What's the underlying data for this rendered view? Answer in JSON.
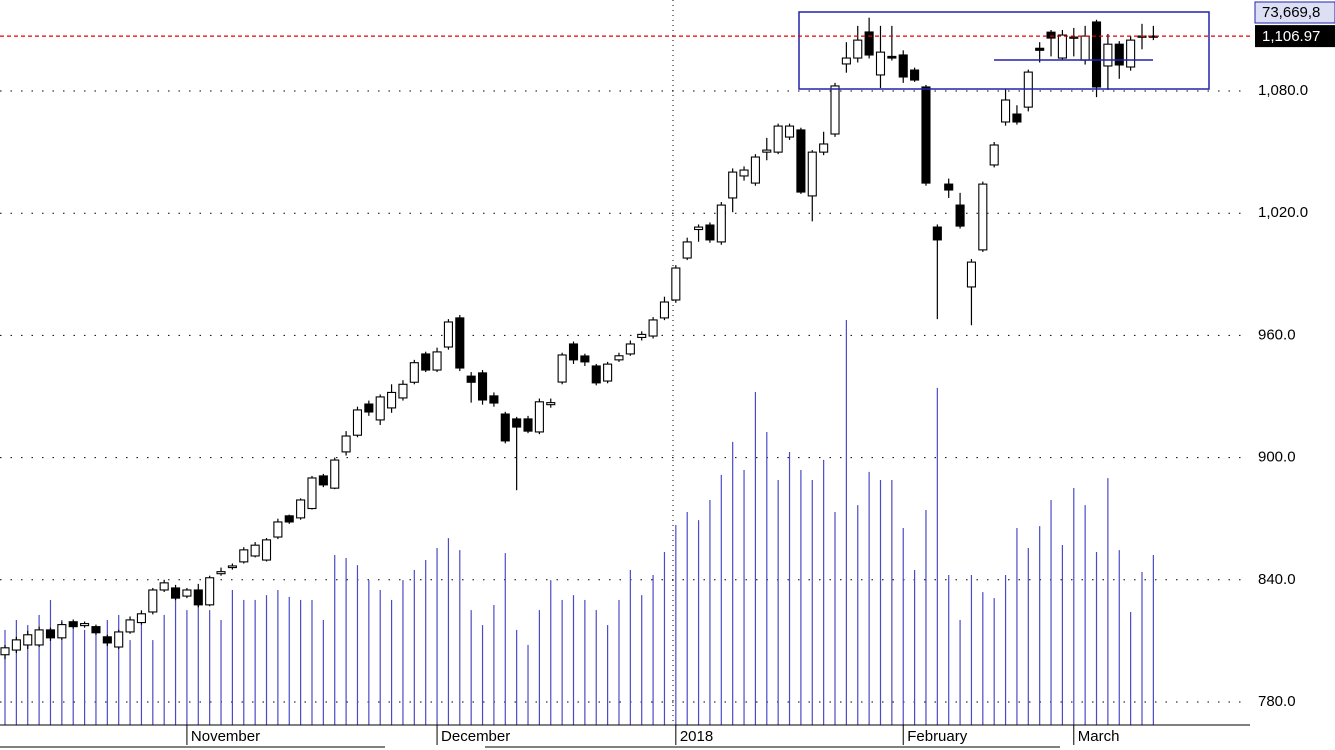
{
  "chart_data": {
    "type": "candlestick",
    "categories": [
      null,
      null,
      null,
      null,
      null,
      null,
      null,
      null,
      null,
      null,
      null,
      null,
      null,
      null,
      null,
      null,
      "November",
      null,
      null,
      null,
      null,
      null,
      null,
      null,
      null,
      null,
      null,
      null,
      null,
      null,
      null,
      null,
      null,
      null,
      null,
      null,
      null,
      null,
      "December",
      null,
      null,
      null,
      null,
      null,
      null,
      null,
      null,
      null,
      null,
      null,
      null,
      null,
      null,
      null,
      null,
      null,
      null,
      null,
      null,
      "2018",
      null,
      null,
      null,
      null,
      null,
      null,
      null,
      null,
      null,
      null,
      null,
      null,
      null,
      null,
      null,
      null,
      null,
      null,
      null,
      "February",
      null,
      null,
      null,
      null,
      null,
      null,
      null,
      null,
      null,
      null,
      null,
      null,
      null,
      null,
      "March",
      null,
      null,
      null,
      null,
      null,
      null,
      null
    ],
    "open": [
      803.2,
      805.5,
      808,
      808,
      815.4,
      811.5,
      819.4,
      817.5,
      817,
      812,
      807,
      814.4,
      819,
      824.2,
      835,
      836,
      832,
      835,
      827.7,
      843,
      846,
      848.8,
      851.7,
      849.7,
      861,
      871.4,
      870.4,
      875,
      891,
      885,
      902.8,
      911,
      926.3,
      918.5,
      924.4,
      929.3,
      937,
      950.9,
      943,
      954.3,
      968.6,
      940,
      941.6,
      930.3,
      921.4,
      919,
      919,
      912.6,
      926,
      937.1,
      955.8,
      949.9,
      945,
      937.6,
      948,
      950.9,
      959,
      959.7,
      968.6,
      977.4,
      998,
      1012,
      1014.2,
      1005.9,
      1027.5,
      1038.3,
      1034.8,
      1050,
      1050,
      1057.4,
      1060.9,
      1028.5,
      1050,
      1058.9,
      1093.3,
      1096.2,
      1109,
      1087.9,
      1097,
      1097.7,
      1090.3,
      1082,
      1013.2,
      1034.3,
      1024,
      983.8,
      1002,
      1043.7,
      1064.8,
      1068.7,
      1072.1,
      1101,
      1108.9,
      1096.2,
      1106,
      1095.2,
      1113.9,
      1092.3,
      1103,
      1091.8,
      1106.5,
      1107
    ],
    "high": [
      808,
      812,
      815,
      817,
      816.5,
      819.5,
      820.5,
      819.5,
      818,
      813,
      815.5,
      822,
      825,
      836,
      840,
      837.5,
      836,
      838,
      842,
      846,
      848,
      856,
      858.5,
      860.5,
      870,
      872,
      880,
      891,
      892,
      900,
      913,
      925,
      928,
      931,
      936,
      938,
      948,
      952,
      954,
      968,
      970,
      942,
      943,
      932,
      922.5,
      920,
      920.5,
      929,
      929,
      951.5,
      957,
      951,
      946,
      947,
      951.5,
      957.5,
      962,
      969,
      979,
      994.5,
      1008,
      1014.5,
      1015.5,
      1025.5,
      1042,
      1043,
      1049,
      1057,
      1064,
      1064,
      1062,
      1051,
      1060,
      1084,
      1104,
      1112,
      1116,
      1112,
      1112,
      1100,
      1091.5,
      1083,
      1014.5,
      1037,
      1030,
      997.5,
      1035.5,
      1055,
      1081,
      1073,
      1090.5,
      1104,
      1110,
      1110,
      1111,
      1112,
      1115,
      1108,
      1104.5,
      1107,
      1113,
      1112
    ],
    "low": [
      801,
      804,
      806,
      807,
      810,
      810.5,
      816,
      816.5,
      813,
      807.5,
      806,
      813.5,
      818,
      823,
      834,
      830,
      831,
      826.5,
      827,
      842,
      845,
      848,
      851,
      849,
      860,
      867.5,
      869.5,
      874.5,
      885.5,
      884.5,
      901,
      910,
      920.5,
      916,
      922,
      928,
      936,
      942,
      942,
      953,
      942.5,
      927,
      926,
      925,
      907,
      884,
      912,
      911.5,
      924.5,
      936,
      946,
      945,
      935.5,
      936.5,
      947,
      950,
      957.5,
      958.5,
      967.5,
      976,
      997,
      1006,
      1005.5,
      1004.5,
      1020.5,
      1036,
      1033.5,
      1046,
      1049,
      1056,
      1029.5,
      1016,
      1048.5,
      1057.5,
      1089,
      1094,
      1096,
      1081.5,
      1095,
      1084,
      1084.5,
      1033.5,
      968,
      1027.5,
      1012.5,
      965,
      1001,
      1042.5,
      1063,
      1063.5,
      1070,
      1094,
      1097,
      1095.5,
      1097,
      1093,
      1077,
      1080.5,
      1086,
      1090,
      1100.5,
      1105
    ],
    "close": [
      806.6,
      810.5,
      813,
      815.4,
      811.5,
      818,
      817,
      818.5,
      814,
      809,
      814.4,
      820.3,
      823.3,
      835,
      838.5,
      831,
      835,
      827.7,
      841,
      844,
      846.8,
      854.7,
      857,
      859.6,
      868.4,
      868.4,
      879.2,
      890,
      886.6,
      898.8,
      910.6,
      923.4,
      922.4,
      929.8,
      932,
      936,
      946.6,
      943,
      951.9,
      966.6,
      944,
      937,
      928.3,
      926.8,
      908.2,
      915,
      913,
      927.4,
      927,
      950.4,
      948,
      947,
      936.7,
      945.9,
      950,
      955.8,
      960.5,
      967.6,
      976.4,
      993.1,
      1005.9,
      1013.2,
      1006.9,
      1024,
      1040.2,
      1041.2,
      1047.6,
      1051,
      1062.8,
      1062.8,
      1030.4,
      1050,
      1054,
      1082.5,
      1096.2,
      1105,
      1097.7,
      1099.1,
      1096.2,
      1086.9,
      1085.4,
      1034.8,
      1006.9,
      1031.4,
      1013.7,
      996,
      1034.3,
      1053.5,
      1075.6,
      1064.8,
      1089.3,
      1100,
      1106,
      1107.5,
      1106.5,
      1107,
      1082,
      1103,
      1092.8,
      1105,
      1107,
      1106.97
    ],
    "volume": [
      41.2,
      45.5,
      43.3,
      47.7,
      54.2,
      45.5,
      43.3,
      41.2,
      41.2,
      45.5,
      47.7,
      36.8,
      49.0,
      36.8,
      47.7,
      54.2,
      49.8,
      52.0,
      49.8,
      45.5,
      58.5,
      54.2,
      54.2,
      56.3,
      58.5,
      55.5,
      54.2,
      54.2,
      45.5,
      73.7,
      72.4,
      69.3,
      62.8,
      58.5,
      54.2,
      62.8,
      67.2,
      71.5,
      76.7,
      81.0,
      75.8,
      49.8,
      43.3,
      52.0,
      74.5,
      41.2,
      34.7,
      49.8,
      62.8,
      54.2,
      56.3,
      54.2,
      49.8,
      43.3,
      54.2,
      67.2,
      56.3,
      65.0,
      75.0,
      86.7,
      92.3,
      88.8,
      97.5,
      108.4,
      122.7,
      110.5,
      144.3,
      127.0,
      106.2,
      118.3,
      110.5,
      106.2,
      114.9,
      92.3,
      175.5,
      95.3,
      109.7,
      106.2,
      106.2,
      85.4,
      67.2,
      93.2,
      146.1,
      65.0,
      45.5,
      65.0,
      57.6,
      55.0,
      65.0,
      85.4,
      76.7,
      86.2,
      97.5,
      78.0,
      102.7,
      95.3,
      75.0,
      107.0,
      75.8,
      49.0,
      66.3,
      73.67
    ],
    "ylim": [
      768.7,
      1124.7
    ],
    "yticks": [
      {
        "value": 780,
        "label": "780.0"
      },
      {
        "value": 840,
        "label": "840.0"
      },
      {
        "value": 900,
        "label": "900.0"
      },
      {
        "value": 960,
        "label": "960.0"
      },
      {
        "value": 1020,
        "label": "1,020.0"
      },
      {
        "value": 1080,
        "label": "1,080.0"
      }
    ],
    "y2lim": [
      0,
      314.2
    ],
    "last_price_label": "1,106.97",
    "last_volume_label": "73,669,8",
    "grid": true,
    "up_color": "#ffffff",
    "down_color": "#000000",
    "volume_color": "#4b4bc8",
    "last_price_color": "#e00000"
  }
}
